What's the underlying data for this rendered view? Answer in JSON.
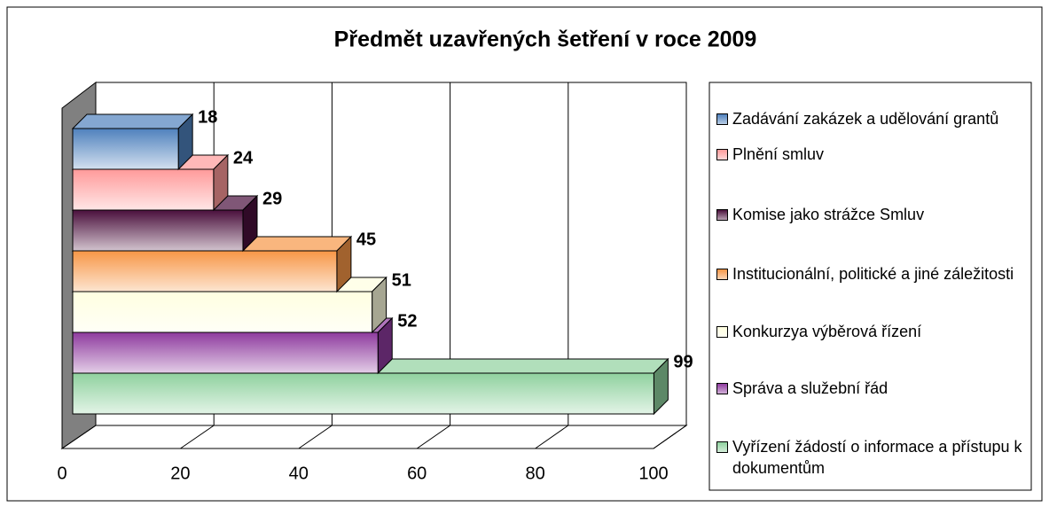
{
  "chart_data": {
    "type": "bar3d",
    "orientation": "horizontal",
    "title": "Předmět uzavřených šetření v roce 2009",
    "categories": [
      "Zadávání zakázek a udělování grantů",
      "Plnění smluv",
      "Komise jako strážce Smluv",
      "Institucionální, politické a jiné záležitosti",
      "Konkurzya výběrová řízení",
      "Správa a služební řád",
      "Vyřízení žádostí o informace a přístupu k dokumentům"
    ],
    "values": [
      18,
      24,
      29,
      45,
      51,
      52,
      99
    ],
    "colors": [
      "#4f81bd",
      "#ff9a9a",
      "#4a0f3c",
      "#f79646",
      "#ffffe0",
      "#8e3a9e",
      "#8fd19e"
    ],
    "xlim": [
      0,
      100
    ],
    "xticks": [
      0,
      20,
      40,
      60,
      80,
      100
    ],
    "grid": true,
    "legend": "right"
  }
}
